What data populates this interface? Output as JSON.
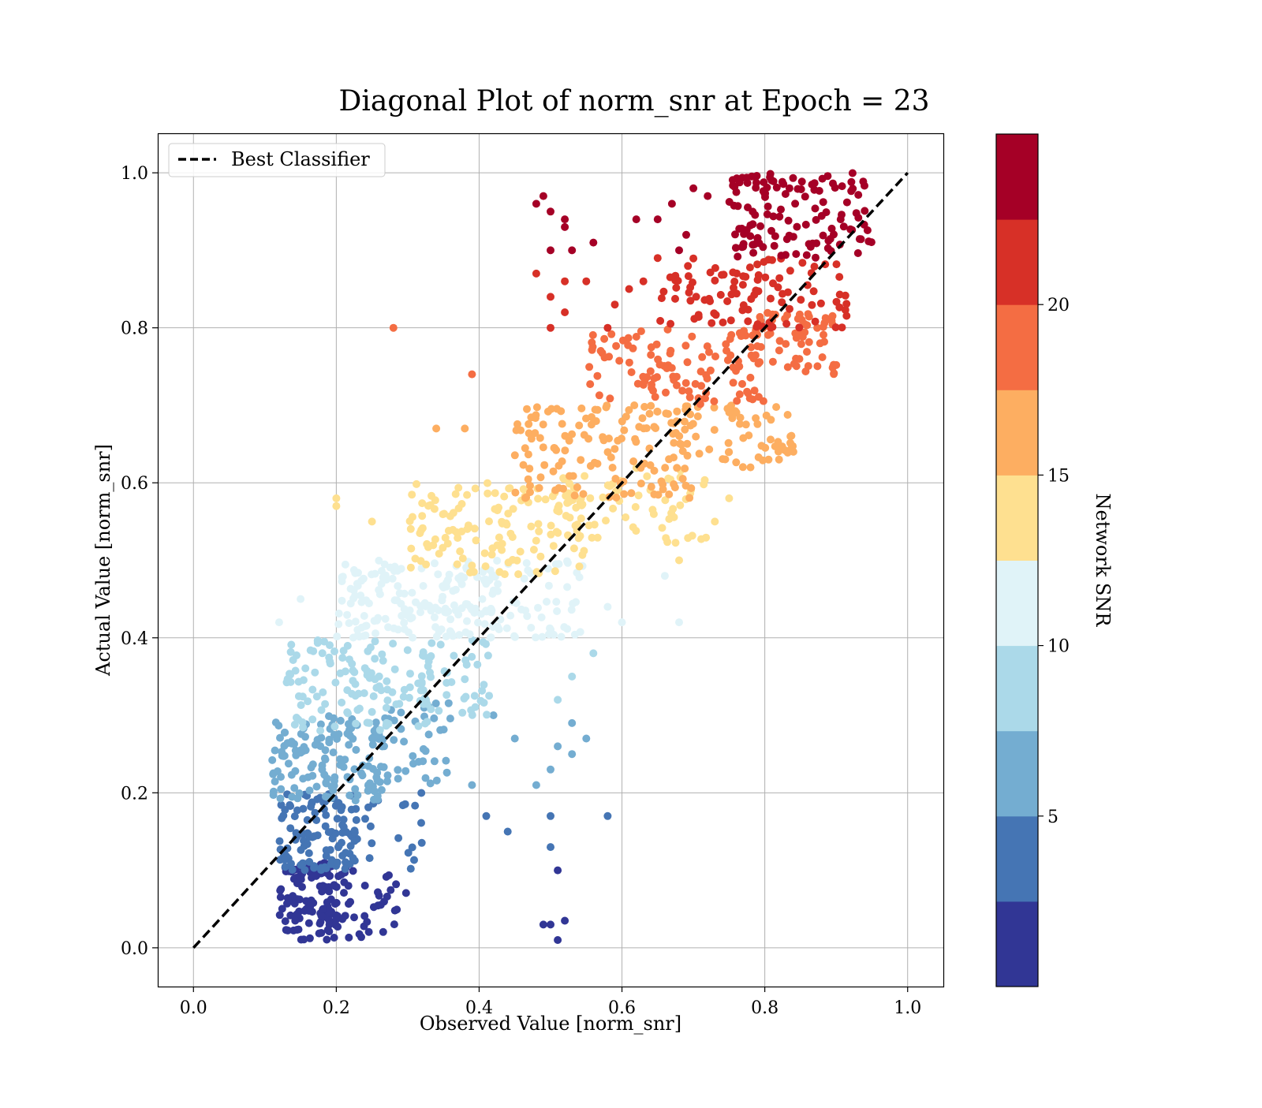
{
  "chart_data": {
    "type": "scatter",
    "title": "Diagonal Plot of norm_snr at Epoch = 23",
    "xlabel": "Observed Value [norm_snr]",
    "ylabel": "Actual Value [norm_snr]",
    "xlim": [
      -0.05,
      1.05
    ],
    "ylim": [
      -0.05,
      1.05
    ],
    "x_ticks": [
      "0.0",
      "0.2",
      "0.4",
      "0.6",
      "0.8",
      "1.0"
    ],
    "y_ticks": [
      "0.0",
      "0.2",
      "0.4",
      "0.6",
      "0.8",
      "1.0"
    ],
    "x_tick_values": [
      0,
      0.2,
      0.4,
      0.6,
      0.8,
      1.0
    ],
    "y_tick_values": [
      0,
      0.2,
      0.4,
      0.6,
      0.8,
      1.0
    ],
    "grid": true,
    "legend": {
      "placement": "upper-left",
      "entries": [
        "Best Classifier"
      ]
    },
    "diagonal_line": {
      "name": "Best Classifier",
      "x": [
        0,
        1
      ],
      "y": [
        0,
        1
      ],
      "color": "#000000",
      "style": "dashed"
    },
    "colorbar": {
      "label": "Network SNR",
      "ticks": [
        "5",
        "10",
        "15",
        "20"
      ],
      "tick_values": [
        5,
        10,
        15,
        20
      ],
      "range": [
        0,
        25
      ],
      "colors": [
        "#313695",
        "#4575b4",
        "#74add1",
        "#abd9e9",
        "#e0f3f8",
        "#fee090",
        "#fdae61",
        "#f46d43",
        "#d73027",
        "#a50026"
      ]
    },
    "clusters": [
      {
        "snr": 1.5,
        "count": 130,
        "cx": [
          0.12,
          0.22
        ],
        "cy": [
          0.01,
          0.11
        ]
      },
      {
        "snr": 1.5,
        "count": 25,
        "cx": [
          0.22,
          0.3
        ],
        "cy": [
          0.01,
          0.1
        ]
      },
      {
        "snr": 4.0,
        "count": 110,
        "cx": [
          0.12,
          0.23
        ],
        "cy": [
          0.1,
          0.2
        ]
      },
      {
        "snr": 4.0,
        "count": 18,
        "cx": [
          0.23,
          0.33
        ],
        "cy": [
          0.1,
          0.2
        ]
      },
      {
        "snr": 6.5,
        "count": 140,
        "cx": [
          0.11,
          0.27
        ],
        "cy": [
          0.19,
          0.3
        ]
      },
      {
        "snr": 6.5,
        "count": 35,
        "cx": [
          0.27,
          0.36
        ],
        "cy": [
          0.21,
          0.32
        ]
      },
      {
        "snr": 9.0,
        "count": 130,
        "cx": [
          0.13,
          0.34
        ],
        "cy": [
          0.28,
          0.4
        ]
      },
      {
        "snr": 9.0,
        "count": 30,
        "cx": [
          0.34,
          0.42
        ],
        "cy": [
          0.3,
          0.4
        ]
      },
      {
        "snr": 11.5,
        "count": 160,
        "cx": [
          0.2,
          0.42
        ],
        "cy": [
          0.4,
          0.5
        ]
      },
      {
        "snr": 11.5,
        "count": 60,
        "cx": [
          0.4,
          0.55
        ],
        "cy": [
          0.4,
          0.5
        ]
      },
      {
        "snr": 14.0,
        "count": 130,
        "cx": [
          0.3,
          0.55
        ],
        "cy": [
          0.48,
          0.6
        ]
      },
      {
        "snr": 14.0,
        "count": 70,
        "cx": [
          0.5,
          0.72
        ],
        "cy": [
          0.52,
          0.62
        ]
      },
      {
        "snr": 16.5,
        "count": 140,
        "cx": [
          0.45,
          0.7
        ],
        "cy": [
          0.58,
          0.7
        ]
      },
      {
        "snr": 16.5,
        "count": 60,
        "cx": [
          0.66,
          0.84
        ],
        "cy": [
          0.62,
          0.7
        ]
      },
      {
        "snr": 19.0,
        "count": 110,
        "cx": [
          0.55,
          0.8
        ],
        "cy": [
          0.7,
          0.8
        ]
      },
      {
        "snr": 19.0,
        "count": 60,
        "cx": [
          0.78,
          0.9
        ],
        "cy": [
          0.74,
          0.82
        ]
      },
      {
        "snr": 21.5,
        "count": 100,
        "cx": [
          0.65,
          0.92
        ],
        "cy": [
          0.8,
          0.89
        ]
      },
      {
        "snr": 24.0,
        "count": 130,
        "cx": [
          0.75,
          0.95
        ],
        "cy": [
          0.89,
          1.0
        ]
      }
    ],
    "points": [
      {
        "x": 0.51,
        "y": 0.01,
        "snr": 1.5
      },
      {
        "x": 0.49,
        "y": 0.03,
        "snr": 1.5
      },
      {
        "x": 0.5,
        "y": 0.03,
        "snr": 1.5
      },
      {
        "x": 0.52,
        "y": 0.035,
        "snr": 1.5
      },
      {
        "x": 0.51,
        "y": 0.1,
        "snr": 1.5
      },
      {
        "x": 0.5,
        "y": 0.13,
        "snr": 4.0
      },
      {
        "x": 0.5,
        "y": 0.17,
        "snr": 4.0
      },
      {
        "x": 0.41,
        "y": 0.17,
        "snr": 4.0
      },
      {
        "x": 0.44,
        "y": 0.15,
        "snr": 4.0
      },
      {
        "x": 0.58,
        "y": 0.17,
        "snr": 4.0
      },
      {
        "x": 0.39,
        "y": 0.21,
        "snr": 6.5
      },
      {
        "x": 0.48,
        "y": 0.21,
        "snr": 6.5
      },
      {
        "x": 0.5,
        "y": 0.23,
        "snr": 6.5
      },
      {
        "x": 0.51,
        "y": 0.26,
        "snr": 6.5
      },
      {
        "x": 0.53,
        "y": 0.25,
        "snr": 6.5
      },
      {
        "x": 0.55,
        "y": 0.27,
        "snr": 6.5
      },
      {
        "x": 0.53,
        "y": 0.29,
        "snr": 6.5
      },
      {
        "x": 0.45,
        "y": 0.27,
        "snr": 6.5
      },
      {
        "x": 0.42,
        "y": 0.3,
        "snr": 6.5
      },
      {
        "x": 0.56,
        "y": 0.38,
        "snr": 9.0
      },
      {
        "x": 0.53,
        "y": 0.35,
        "snr": 9.0
      },
      {
        "x": 0.51,
        "y": 0.32,
        "snr": 9.0
      },
      {
        "x": 0.28,
        "y": 0.8,
        "snr": 19.0
      },
      {
        "x": 0.39,
        "y": 0.74,
        "snr": 19.0
      },
      {
        "x": 0.34,
        "y": 0.67,
        "snr": 16.5
      },
      {
        "x": 0.38,
        "y": 0.67,
        "snr": 16.5
      },
      {
        "x": 0.2,
        "y": 0.57,
        "snr": 14.0
      },
      {
        "x": 0.2,
        "y": 0.58,
        "snr": 14.0
      },
      {
        "x": 0.25,
        "y": 0.55,
        "snr": 14.0
      },
      {
        "x": 0.15,
        "y": 0.45,
        "snr": 11.5
      },
      {
        "x": 0.12,
        "y": 0.42,
        "snr": 11.5
      },
      {
        "x": 0.6,
        "y": 0.42,
        "snr": 11.5
      },
      {
        "x": 0.68,
        "y": 0.42,
        "snr": 11.5
      },
      {
        "x": 0.66,
        "y": 0.48,
        "snr": 11.5
      },
      {
        "x": 0.58,
        "y": 0.44,
        "snr": 11.5
      },
      {
        "x": 0.68,
        "y": 0.5,
        "snr": 14.0
      },
      {
        "x": 0.75,
        "y": 0.58,
        "snr": 14.0
      },
      {
        "x": 0.73,
        "y": 0.55,
        "snr": 14.0
      },
      {
        "x": 0.78,
        "y": 0.62,
        "snr": 16.5
      },
      {
        "x": 0.84,
        "y": 0.64,
        "snr": 16.5
      },
      {
        "x": 0.82,
        "y": 0.63,
        "snr": 16.5
      },
      {
        "x": 0.49,
        "y": 0.97,
        "snr": 24.0
      },
      {
        "x": 0.48,
        "y": 0.96,
        "snr": 24.0
      },
      {
        "x": 0.5,
        "y": 0.95,
        "snr": 24.0
      },
      {
        "x": 0.52,
        "y": 0.94,
        "snr": 24.0
      },
      {
        "x": 0.52,
        "y": 0.93,
        "snr": 24.0
      },
      {
        "x": 0.5,
        "y": 0.9,
        "snr": 24.0
      },
      {
        "x": 0.53,
        "y": 0.9,
        "snr": 24.0
      },
      {
        "x": 0.56,
        "y": 0.91,
        "snr": 24.0
      },
      {
        "x": 0.62,
        "y": 0.94,
        "snr": 24.0
      },
      {
        "x": 0.65,
        "y": 0.94,
        "snr": 24.0
      },
      {
        "x": 0.67,
        "y": 0.96,
        "snr": 24.0
      },
      {
        "x": 0.7,
        "y": 0.98,
        "snr": 24.0
      },
      {
        "x": 0.72,
        "y": 0.97,
        "snr": 24.0
      },
      {
        "x": 0.69,
        "y": 0.92,
        "snr": 24.0
      },
      {
        "x": 0.68,
        "y": 0.9,
        "snr": 24.0
      },
      {
        "x": 0.48,
        "y": 0.87,
        "snr": 21.5
      },
      {
        "x": 0.5,
        "y": 0.84,
        "snr": 21.5
      },
      {
        "x": 0.52,
        "y": 0.86,
        "snr": 21.5
      },
      {
        "x": 0.55,
        "y": 0.86,
        "snr": 21.5
      },
      {
        "x": 0.59,
        "y": 0.83,
        "snr": 21.5
      },
      {
        "x": 0.61,
        "y": 0.85,
        "snr": 21.5
      },
      {
        "x": 0.63,
        "y": 0.86,
        "snr": 21.5
      },
      {
        "x": 0.58,
        "y": 0.8,
        "snr": 21.5
      },
      {
        "x": 0.52,
        "y": 0.82,
        "snr": 21.5
      },
      {
        "x": 0.5,
        "y": 0.8,
        "snr": 21.5
      },
      {
        "x": 0.65,
        "y": 0.89,
        "snr": 21.5
      }
    ]
  }
}
